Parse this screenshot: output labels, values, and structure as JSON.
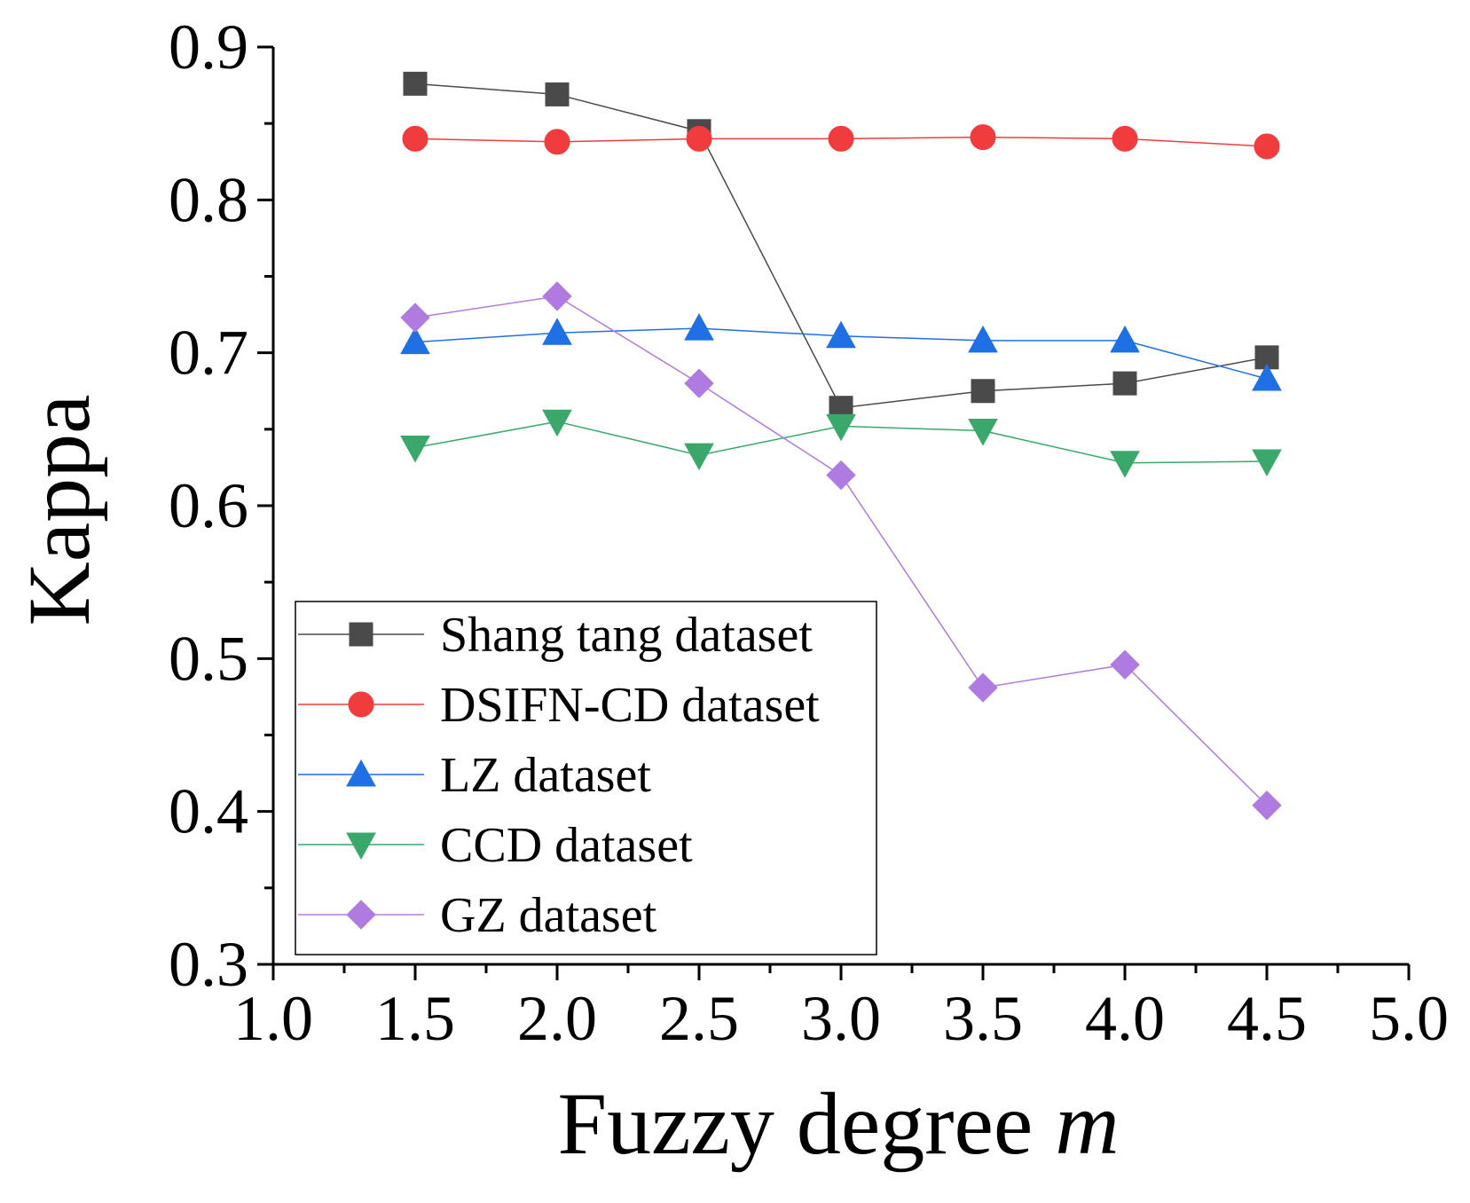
{
  "chart_data": {
    "type": "line",
    "xlabel": "Fuzzy degree",
    "xlabel_var": "m",
    "ylabel": "Kappa",
    "xlim": [
      1.0,
      5.0
    ],
    "ylim": [
      0.3,
      0.9
    ],
    "xticks": [
      "1.0",
      "1.5",
      "2.0",
      "2.5",
      "3.0",
      "3.5",
      "4.0",
      "4.5",
      "5.0"
    ],
    "yticks": [
      "0.3",
      "0.4",
      "0.5",
      "0.6",
      "0.7",
      "0.8",
      "0.9"
    ],
    "x": [
      1.5,
      2.0,
      2.5,
      3.0,
      3.5,
      4.0,
      4.5
    ],
    "legend_position": "bottom-left",
    "series": [
      {
        "name": "Shang tang dataset",
        "marker": "square",
        "color": "#4a4a4a",
        "values": [
          0.876,
          0.869,
          0.845,
          0.664,
          0.675,
          0.68,
          0.697
        ]
      },
      {
        "name": "DSIFN-CD dataset",
        "marker": "circle",
        "color": "#f03c3c",
        "values": [
          0.84,
          0.838,
          0.84,
          0.84,
          0.841,
          0.84,
          0.835
        ]
      },
      {
        "name": "LZ dataset",
        "marker": "triangle-up",
        "color": "#1f6fe5",
        "values": [
          0.707,
          0.713,
          0.716,
          0.711,
          0.708,
          0.708,
          0.683
        ]
      },
      {
        "name": "CCD dataset",
        "marker": "triangle-down",
        "color": "#3aa86b",
        "values": [
          0.638,
          0.655,
          0.633,
          0.652,
          0.649,
          0.628,
          0.629
        ]
      },
      {
        "name": "GZ dataset",
        "marker": "diamond",
        "color": "#b07be0",
        "values": [
          0.723,
          0.737,
          0.68,
          0.62,
          0.481,
          0.496,
          0.404
        ]
      }
    ]
  }
}
